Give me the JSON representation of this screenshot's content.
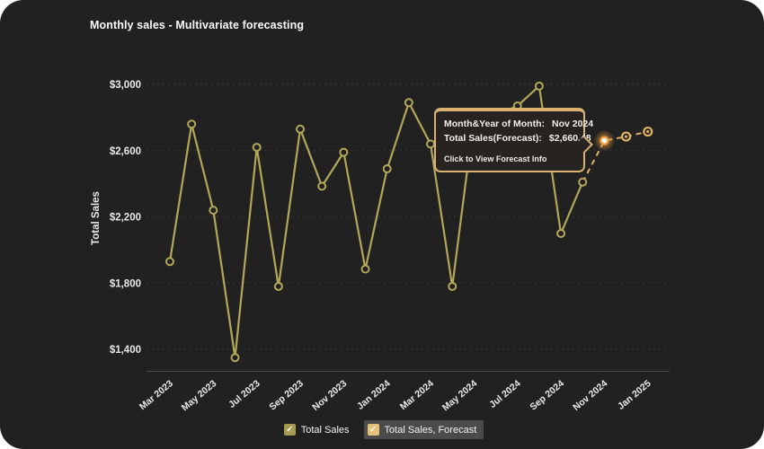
{
  "header": {
    "title": "Monthly sales - Multivariate forecasting"
  },
  "colors": {
    "page_bg": "#ffffff",
    "card_bg": "#212121",
    "title_text": "#fafafa",
    "axis_text": "#e9e9e9",
    "grid": "#3a3a3a",
    "axis_line": "#4d4d4d",
    "series_line": "#b3a759",
    "forecast_line": "#e0b166",
    "highlight_glow": "#ef9f42",
    "highlight_core": "#ffffff",
    "tooltip_bg": "#262320",
    "tooltip_border": "#d9b271",
    "tooltip_text": "#f3efe7",
    "legend_highlight_bg": "#4b4b4b",
    "checkbox_solid": "#a69b4f",
    "checkbox_forecast": "#e4c078"
  },
  "chart_data": {
    "type": "line",
    "title": "Monthly sales - Multivariate forecasting",
    "xlabel": "",
    "ylabel": "Total Sales",
    "grid": true,
    "legend_position": "bottom",
    "ylim": [
      1250,
      3050
    ],
    "months": [
      "Mar 2023",
      "Apr 2023",
      "May 2023",
      "Jun 2023",
      "Jul 2023",
      "Aug 2023",
      "Sep 2023",
      "Oct 2023",
      "Nov 2023",
      "Dec 2023",
      "Jan 2024",
      "Feb 2024",
      "Mar 2024",
      "Apr 2024",
      "May 2024",
      "Jun 2024",
      "Jul 2024",
      "Aug 2024",
      "Sep 2024",
      "Oct 2024",
      "Nov 2024",
      "Dec 2024",
      "Jan 2025"
    ],
    "xticks": [
      "Mar 2023",
      "May 2023",
      "Jul 2023",
      "Sep 2023",
      "Nov 2023",
      "Jan 2024",
      "Mar 2024",
      "May 2024",
      "Jul 2024",
      "Sep 2024",
      "Nov 2024",
      "Jan 2025"
    ],
    "yticks": {
      "labels": [
        "$3,000",
        "$2,600",
        "$2,200",
        "$1,800",
        "$1,400"
      ],
      "values": [
        3000,
        2600,
        2200,
        1800,
        1400
      ]
    },
    "series": [
      {
        "name": "Total Sales",
        "line_style": "solid",
        "x": [
          "Mar 2023",
          "Apr 2023",
          "May 2023",
          "Jun 2023",
          "Jul 2023",
          "Aug 2023",
          "Sep 2023",
          "Oct 2023",
          "Nov 2023",
          "Dec 2023",
          "Jan 2024",
          "Feb 2024",
          "Mar 2024",
          "Apr 2024",
          "May 2024",
          "Jun 2024",
          "Jul 2024",
          "Aug 2024",
          "Sep 2024",
          "Oct 2024"
        ],
        "values": [
          1930,
          2760,
          2240,
          1350,
          2620,
          1780,
          2730,
          2385,
          2590,
          1885,
          2490,
          2890,
          2640,
          1780,
          2800,
          2815,
          2870,
          2990,
          2100,
          2410
        ]
      },
      {
        "name": "Total Sales, Forecast",
        "line_style": "dashed",
        "x": [
          "Oct 2024",
          "Nov 2024",
          "Dec 2024",
          "Jan 2025"
        ],
        "values": [
          2410,
          2660.48,
          2685,
          2715
        ]
      }
    ],
    "highlight": {
      "x": "Nov 2024",
      "value": 2660.48
    }
  },
  "tooltip": {
    "rows": [
      {
        "label": "Month&Year of Month:",
        "value": "Nov 2024"
      },
      {
        "label": "Total Sales(Forecast):",
        "value": "$2,660.48"
      }
    ],
    "action": "Click to View Forecast Info"
  },
  "legend": {
    "items": [
      {
        "label": "Total Sales",
        "checked": true,
        "highlighted": false
      },
      {
        "label": "Total Sales, Forecast",
        "checked": true,
        "highlighted": true
      }
    ]
  },
  "icons": {
    "checkmark": "✓"
  }
}
